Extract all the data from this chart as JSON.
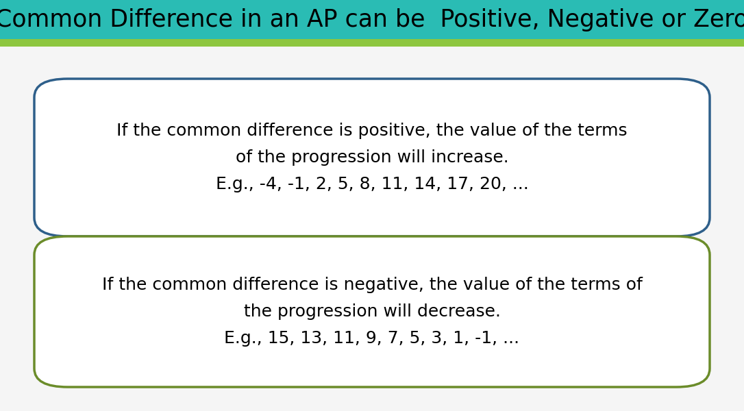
{
  "title": "Common Difference in an AP can be  Positive, Negative or Zero",
  "title_bg": "#2abcb4",
  "title_stripe": "#8dc63f",
  "title_color": "#000000",
  "title_fontsize": 25,
  "title_font": "Comic Sans MS",
  "bg_color": "#f5f5f5",
  "box1_text_line1": "If the common difference is positive, the value of the terms",
  "box1_text_line2": "of the progression will increase.",
  "box1_text_line3": "E.g., -4, -1, 2, 5, 8, 11, 14, 17, 20, ...",
  "box1_border_color": "#2e5f8a",
  "box1_fill": "#ffffff",
  "box2_text_line1": "If the common difference is negative, the value of the terms of",
  "box2_text_line2": "the progression will decrease.",
  "box2_text_line3": "E.g., 15, 13, 11, 9, 7, 5, 3, 1, -1, ...",
  "box2_border_color": "#6b8c2a",
  "box2_fill": "#ffffff",
  "text_fontsize": 18,
  "text_color": "#000000",
  "text_font": "DejaVu Sans"
}
